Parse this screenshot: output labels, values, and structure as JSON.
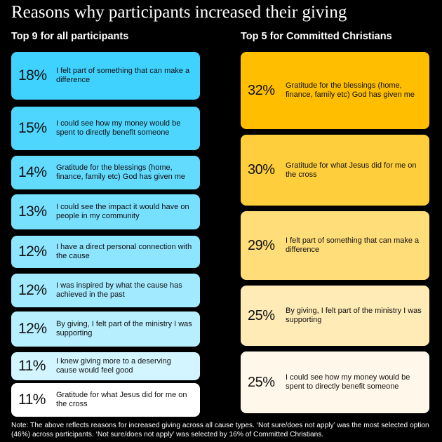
{
  "title": "Reasons why participants increased their giving",
  "chart_data": [
    {
      "type": "table",
      "title": "Top 9 for all participants",
      "unit": "%",
      "items": [
        {
          "pct": "18%",
          "value": 18,
          "label": "I felt part of something that can make a difference",
          "color": "#3fd2ff"
        },
        {
          "pct": "15%",
          "value": 15,
          "label": "I could see how my money would be spent to directly benefit someone",
          "color": "#4fd6ff"
        },
        {
          "pct": "14%",
          "value": 14,
          "label": "Gratitude for the blessings (home, finance, family etc) God has given me",
          "color": "#63dbff"
        },
        {
          "pct": "13%",
          "value": 13,
          "label": "I could see the impact it would have on people in my community",
          "color": "#78e0ff"
        },
        {
          "pct": "12%",
          "value": 12,
          "label": "I have a direct personal connection with the cause",
          "color": "#8de5ff"
        },
        {
          "pct": "12%",
          "value": 12,
          "label": "I was inspired by what the cause has achieved in the past",
          "color": "#a2eaff"
        },
        {
          "pct": "12%",
          "value": 12,
          "label": "By giving, I felt part of the ministry I was supporting",
          "color": "#b7efff"
        },
        {
          "pct": "11%",
          "value": 11,
          "label": "I knew giving more to a deserving cause would feel good",
          "color": "#d2f5ff"
        },
        {
          "pct": "11%",
          "value": 11,
          "label": "Gratitude for what Jesus did for me on the cross",
          "color": "#ffffff"
        }
      ]
    },
    {
      "type": "table",
      "title": "Top 5 for Committed Christians",
      "unit": "%",
      "items": [
        {
          "pct": "32%",
          "value": 32,
          "label": "Gratitude for the blessings (home, finance, family etc) God has given me",
          "color": "#ffbf00"
        },
        {
          "pct": "30%",
          "value": 30,
          "label": "Gratitude for what Jesus did for me on the cross",
          "color": "#ffce3c"
        },
        {
          "pct": "29%",
          "value": 29,
          "label": "I felt part of something that can make a difference",
          "color": "#ffdd78"
        },
        {
          "pct": "25%",
          "value": 25,
          "label": "By giving, I felt part of the ministry I was supporting",
          "color": "#ffebb6"
        },
        {
          "pct": "25%",
          "value": 25,
          "label": "I could see how my money would be spent to directly benefit someone",
          "color": "#fff8ea"
        }
      ]
    }
  ],
  "note": "Note: The above reflects reasons for increased giving across all cause types. ‘Not sure/does not apply’ was the most selected option (46%) across participants. ‘Not sure/does not apply’ was selected by 16% of Committed Christians."
}
